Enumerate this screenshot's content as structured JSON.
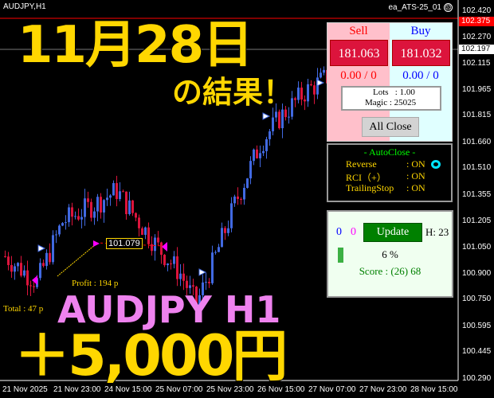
{
  "header": {
    "symbol": "AUDJPY,H1",
    "ea_name": "ea_ATS-25_01",
    "ea_status_icon": "sad-face-icon"
  },
  "overlay": {
    "date_title": "11月28日",
    "result_text": "の結果！",
    "pair_tf": "AUDJPY H1",
    "profit_yen": "＋5,000円"
  },
  "chart_labels": {
    "price_marker": "101.079",
    "profit": "Profit : 194 p",
    "total": "Total : 47 p"
  },
  "trade_panel": {
    "sell_label": "Sell",
    "buy_label": "Buy",
    "sell_price": "181.063",
    "buy_price": "181.032",
    "sell_pos": "0.00 / 0",
    "buy_pos": "0.00 / 0",
    "lots": "Lots   : 1.00",
    "magic": "Magic : 25025",
    "all_close": "All Close"
  },
  "autoclose_panel": {
    "title": "- AutoClose -",
    "rows": [
      {
        "label": "Reverse",
        "value": ": ON"
      },
      {
        "label": "RCI（+）",
        "value": ": ON"
      },
      {
        "label": "TrailingStop",
        "value": ": ON"
      }
    ],
    "indicator_color": "#00e5ff"
  },
  "score_panel": {
    "count_blue": "0",
    "count_magenta": "0",
    "update": "Update",
    "hour": "H: 23",
    "percent": "6 %",
    "progress": 0.06,
    "score": "Score : (26) 68"
  },
  "price_axis": {
    "labels": [
      "102.420",
      "102.270",
      "102.115",
      "101.965",
      "101.815",
      "101.660",
      "101.510",
      "101.355",
      "101.205",
      "101.050",
      "100.900",
      "100.750",
      "100.595",
      "100.445",
      "100.290"
    ],
    "ask_line": "102.375",
    "bid_line": "102.197"
  },
  "time_axis": {
    "labels": [
      "21 Nov 2025",
      "21 Nov 23:00",
      "24 Nov 15:00",
      "25 Nov 07:00",
      "25 Nov 23:00",
      "26 Nov 15:00",
      "27 Nov 07:00",
      "27 Nov 23:00",
      "28 Nov 15:00"
    ]
  },
  "colors": {
    "bull": "#4169e1",
    "bear": "#dc143c",
    "overlay_yellow": "#ffd700",
    "overlay_violet": "#ee82ee",
    "ask_line": "#ff0000"
  },
  "chart_data": {
    "type": "candlestick",
    "ylim": [
      100.29,
      102.42
    ],
    "approx_close_path": [
      [
        0,
        101.0
      ],
      [
        10,
        100.85
      ],
      [
        18,
        101.2
      ],
      [
        28,
        101.3
      ],
      [
        35,
        101.38
      ],
      [
        42,
        101.2
      ],
      [
        48,
        101.05
      ],
      [
        55,
        100.9
      ],
      [
        60,
        100.72
      ],
      [
        66,
        101.0
      ],
      [
        72,
        101.3
      ],
      [
        80,
        101.65
      ],
      [
        86,
        101.8
      ],
      [
        94,
        101.95
      ],
      [
        102,
        102.05
      ]
    ]
  }
}
